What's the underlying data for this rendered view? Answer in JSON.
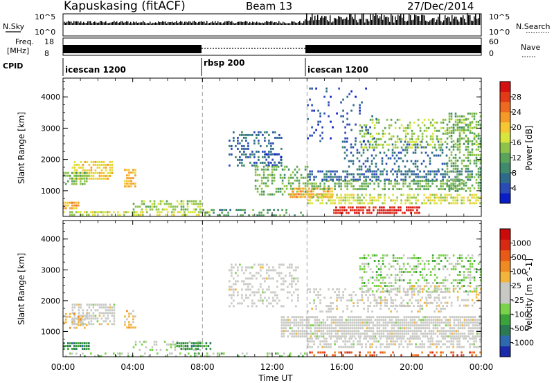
{
  "header": {
    "station": "Kapuskasing (fitACF)",
    "beam": "Beam 13",
    "date": "27/Dec/2014"
  },
  "strip_labels": {
    "nsky": "N.Sky",
    "nsky_ticks": [
      "10^5",
      "10^0"
    ],
    "nsearch": "N.Search",
    "nsearch_ticks": [
      "10^5",
      "10^0"
    ],
    "freq": "Freq.",
    "freq_unit": "[MHz]",
    "freq_ticks": [
      "18",
      "8"
    ],
    "nave": "Nave",
    "nave_ticks": [
      "60",
      "0"
    ],
    "cpid": "CPID"
  },
  "cpid_segments": [
    {
      "name": "icescan 1200",
      "start_h": 0,
      "end_h": 8
    },
    {
      "name": "rbsp 200",
      "start_h": 8,
      "end_h": 14
    },
    {
      "name": "icescan 1200",
      "start_h": 14,
      "end_h": 24
    }
  ],
  "x_axis": {
    "label": "Time UT",
    "ticks": [
      "00:00",
      "04:00",
      "08:00",
      "12:00",
      "16:00",
      "20:00",
      "00:00"
    ],
    "range_h": [
      0,
      24
    ]
  },
  "panels": {
    "power": {
      "ylabel": "Slant Range [km]",
      "yticks": [
        "1000",
        "2000",
        "3000",
        "4000"
      ],
      "cbar_label": "Power [dB]",
      "cbar_ticks": [
        "28",
        "24",
        "20",
        "16",
        "12",
        "8",
        "4"
      ]
    },
    "velocity": {
      "ylabel": "Slant Range [km]",
      "yticks": [
        "1000",
        "2000",
        "3000",
        "4000"
      ],
      "cbar_label": "Velocity [m s^-1]",
      "cbar_ticks": [
        "1000",
        "500",
        "100",
        "25",
        "-25",
        "-100",
        "-500",
        "-1000"
      ]
    }
  },
  "colors": {
    "power_scale": [
      "#0a1ec8",
      "#2a4ab8",
      "#2e6b8a",
      "#3f8a6a",
      "#5aa35a",
      "#8fc24a",
      "#d7e63c",
      "#f5c832",
      "#f59a28",
      "#ee6a1e",
      "#e23a16",
      "#d41010"
    ],
    "velocity_scale": [
      "#1a2aa8",
      "#2e6ab0",
      "#2a7a52",
      "#3aa43a",
      "#7ad24a",
      "#c8c8c4",
      "#c8c8c4",
      "#f2b43a",
      "#f08a22",
      "#e85a16",
      "#d82a12",
      "#cc0a0a"
    ],
    "ground_scatter": "#c8c8c4",
    "dashed_marker": "#a0a0a0"
  },
  "chart_data": [
    {
      "type": "heatmap",
      "title": "Power",
      "xlabel": "Time UT",
      "ylabel": "Slant Range [km]",
      "xlim_h": [
        0,
        24
      ],
      "ylim_km": [
        180,
        4600
      ],
      "colorbar": {
        "label": "Power [dB]",
        "range": [
          0,
          30
        ]
      },
      "regions": [
        {
          "t0": 0.0,
          "t1": 0.9,
          "r0": 400,
          "r1": 650,
          "val": 20,
          "density": 0.85
        },
        {
          "t0": 0.5,
          "t1": 2.8,
          "r0": 1350,
          "r1": 1950,
          "val": 18,
          "density": 0.7
        },
        {
          "t0": 0.0,
          "t1": 1.5,
          "r0": 1200,
          "r1": 1600,
          "val": 12,
          "density": 0.7
        },
        {
          "t0": 3.5,
          "t1": 4.2,
          "r0": 1100,
          "r1": 1700,
          "val": 20,
          "density": 0.65
        },
        {
          "t0": 0.0,
          "t1": 8.5,
          "r0": 200,
          "r1": 350,
          "val": 16,
          "density": 0.55
        },
        {
          "t0": 4.0,
          "t1": 8.0,
          "r0": 400,
          "r1": 700,
          "val": 14,
          "density": 0.55
        },
        {
          "t0": 8.0,
          "t1": 13.8,
          "r0": 220,
          "r1": 420,
          "val": 10,
          "density": 0.35
        },
        {
          "t0": 9.5,
          "t1": 12.5,
          "r0": 1800,
          "r1": 2900,
          "val": 6,
          "density": 0.35
        },
        {
          "t0": 11.5,
          "t1": 12.5,
          "r0": 1800,
          "r1": 2200,
          "val": 4,
          "density": 0.4
        },
        {
          "t0": 11.0,
          "t1": 14.0,
          "r0": 900,
          "r1": 1800,
          "val": 12,
          "density": 0.45
        },
        {
          "t0": 13.0,
          "t1": 15.5,
          "r0": 750,
          "r1": 1100,
          "val": 20,
          "density": 0.8
        },
        {
          "t0": 14.0,
          "t1": 23.0,
          "r0": 1000,
          "r1": 1350,
          "val": 12,
          "density": 0.6
        },
        {
          "t0": 14.0,
          "t1": 23.5,
          "r0": 1350,
          "r1": 1650,
          "val": 6,
          "density": 0.55
        },
        {
          "t0": 15.5,
          "t1": 20.5,
          "r0": 300,
          "r1": 500,
          "val": 28,
          "density": 0.8
        },
        {
          "t0": 14.0,
          "t1": 24.0,
          "r0": 600,
          "r1": 900,
          "val": 16,
          "density": 0.6
        },
        {
          "t0": 16.0,
          "t1": 22.0,
          "r0": 1700,
          "r1": 2600,
          "val": 6,
          "density": 0.25
        },
        {
          "t0": 17.0,
          "t1": 24.0,
          "r0": 2400,
          "r1": 3300,
          "val": 14,
          "density": 0.35
        },
        {
          "t0": 22.0,
          "t1": 24.0,
          "r0": 1000,
          "r1": 3500,
          "val": 12,
          "density": 0.45
        },
        {
          "t0": 14.0,
          "t1": 18.0,
          "r0": 2600,
          "r1": 4300,
          "val": 4,
          "density": 0.12
        }
      ]
    },
    {
      "type": "heatmap",
      "title": "Velocity",
      "xlabel": "Time UT",
      "ylabel": "Slant Range [km]",
      "xlim_h": [
        0,
        24
      ],
      "ylim_km": [
        180,
        4600
      ],
      "colorbar": {
        "label": "Velocity [m s^-1]",
        "range": [
          -1000,
          1000
        ]
      },
      "regions": [
        {
          "t0": 0.0,
          "t1": 1.5,
          "r0": 400,
          "r1": 650,
          "val": -500,
          "density": 0.85
        },
        {
          "t0": 0.5,
          "t1": 3.0,
          "r0": 1200,
          "r1": 1900,
          "val": 0,
          "density": 0.7
        },
        {
          "t0": 0.0,
          "t1": 1.5,
          "r0": 1100,
          "r1": 1600,
          "val": 200,
          "density": 0.5
        },
        {
          "t0": 3.5,
          "t1": 4.2,
          "r0": 1100,
          "r1": 1700,
          "val": 300,
          "density": 0.5
        },
        {
          "t0": 4.0,
          "t1": 8.0,
          "r0": 400,
          "r1": 700,
          "val": -100,
          "density": 0.4
        },
        {
          "t0": 6.5,
          "t1": 8.5,
          "r0": 420,
          "r1": 650,
          "val": -500,
          "density": 0.7
        },
        {
          "t0": 0.0,
          "t1": 14.0,
          "r0": 200,
          "r1": 320,
          "val": -200,
          "density": 0.3
        },
        {
          "t0": 9.5,
          "t1": 13.5,
          "r0": 1800,
          "r1": 3200,
          "val": 0,
          "density": 0.35
        },
        {
          "t0": 12.5,
          "t1": 24.0,
          "r0": 800,
          "r1": 1500,
          "val": 0,
          "density": 0.85
        },
        {
          "t0": 14.0,
          "t1": 24.0,
          "r0": 500,
          "r1": 800,
          "val": 0,
          "density": 0.55
        },
        {
          "t0": 17.0,
          "t1": 24.0,
          "r0": 2300,
          "r1": 3500,
          "val": -200,
          "density": 0.4
        },
        {
          "t0": 17.0,
          "t1": 24.0,
          "r0": 1800,
          "r1": 2500,
          "val": 80,
          "density": 0.3
        },
        {
          "t0": 14.0,
          "t1": 22.0,
          "r0": 1600,
          "r1": 2400,
          "val": 0,
          "density": 0.3
        },
        {
          "t0": 14.0,
          "t1": 24.0,
          "r0": 200,
          "r1": 350,
          "val": 600,
          "density": 0.3
        }
      ]
    }
  ]
}
